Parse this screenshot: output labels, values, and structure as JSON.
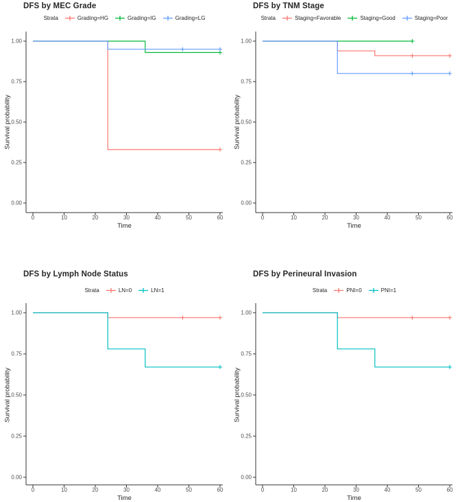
{
  "figure": {
    "background": "#ffffff",
    "axis_color": "#333333",
    "text_color": "#262626",
    "tick_label_color": "#4d4d4d"
  },
  "chart_data": [
    {
      "type": "line",
      "subtype": "kaplan-meier-step",
      "title": "DFS by MEC Grade",
      "xlabel": "Time",
      "ylabel": "Survival probability",
      "legend_title": "Strata",
      "legend_position": "top",
      "xlim": [
        0,
        60
      ],
      "ylim": [
        0,
        1
      ],
      "x_ticks": [
        0,
        10,
        20,
        30,
        40,
        50,
        60
      ],
      "y_ticks": [
        0.0,
        0.25,
        0.5,
        0.75,
        1.0
      ],
      "grid": false,
      "series": [
        {
          "name": "Grading=HG",
          "color": "#F8766D",
          "steps": [
            [
              0,
              1.0
            ],
            [
              24,
              1.0
            ],
            [
              24,
              0.33
            ],
            [
              60,
              0.33
            ]
          ],
          "censor_marks": [
            [
              60,
              0.33
            ]
          ]
        },
        {
          "name": "Grading=IG",
          "color": "#00BA38",
          "steps": [
            [
              0,
              1.0
            ],
            [
              36,
              1.0
            ],
            [
              36,
              0.93
            ],
            [
              60,
              0.93
            ]
          ],
          "censor_marks": [
            [
              60,
              0.93
            ]
          ]
        },
        {
          "name": "Grading=LG",
          "color": "#619CFF",
          "steps": [
            [
              0,
              1.0
            ],
            [
              24,
              1.0
            ],
            [
              24,
              0.95
            ],
            [
              60,
              0.95
            ]
          ],
          "censor_marks": [
            [
              48,
              0.95
            ],
            [
              60,
              0.95
            ]
          ]
        }
      ]
    },
    {
      "type": "line",
      "subtype": "kaplan-meier-step",
      "title": "DFS by TNM Stage",
      "xlabel": "Time",
      "ylabel": "Survival probability",
      "legend_title": "Strata",
      "legend_position": "top",
      "xlim": [
        0,
        60
      ],
      "ylim": [
        0,
        1
      ],
      "x_ticks": [
        0,
        10,
        20,
        30,
        40,
        50,
        60
      ],
      "y_ticks": [
        0.0,
        0.25,
        0.5,
        0.75,
        1.0
      ],
      "grid": false,
      "series": [
        {
          "name": "Staging=Favorable",
          "color": "#F8766D",
          "steps": [
            [
              0,
              1.0
            ],
            [
              24,
              1.0
            ],
            [
              24,
              0.94
            ],
            [
              36,
              0.94
            ],
            [
              36,
              0.91
            ],
            [
              60,
              0.91
            ]
          ],
          "censor_marks": [
            [
              48,
              0.91
            ],
            [
              60,
              0.91
            ]
          ]
        },
        {
          "name": "Staging=Good",
          "color": "#00BA38",
          "steps": [
            [
              0,
              1.0
            ],
            [
              48,
              1.0
            ]
          ],
          "censor_marks": [
            [
              48,
              1.0
            ]
          ]
        },
        {
          "name": "Staging=Poor",
          "color": "#619CFF",
          "steps": [
            [
              0,
              1.0
            ],
            [
              24,
              1.0
            ],
            [
              24,
              0.8
            ],
            [
              60,
              0.8
            ]
          ],
          "censor_marks": [
            [
              48,
              0.8
            ],
            [
              60,
              0.8
            ]
          ]
        }
      ]
    },
    {
      "type": "line",
      "subtype": "kaplan-meier-step",
      "title": "DFS by Lymph Node Status",
      "xlabel": "Time",
      "ylabel": "Survival probability",
      "legend_title": "Strata",
      "legend_position": "top",
      "xlim": [
        0,
        60
      ],
      "ylim": [
        0,
        1
      ],
      "x_ticks": [
        0,
        10,
        20,
        30,
        40,
        50,
        60
      ],
      "y_ticks": [
        0.0,
        0.25,
        0.5,
        0.75,
        1.0
      ],
      "grid": false,
      "series": [
        {
          "name": "LN=0",
          "color": "#F8766D",
          "steps": [
            [
              0,
              1.0
            ],
            [
              24,
              1.0
            ],
            [
              24,
              0.97
            ],
            [
              60,
              0.97
            ]
          ],
          "censor_marks": [
            [
              48,
              0.97
            ],
            [
              60,
              0.97
            ]
          ]
        },
        {
          "name": "LN=1",
          "color": "#00BFC4",
          "steps": [
            [
              0,
              1.0
            ],
            [
              24,
              1.0
            ],
            [
              24,
              0.78
            ],
            [
              36,
              0.78
            ],
            [
              36,
              0.67
            ],
            [
              60,
              0.67
            ]
          ],
          "censor_marks": [
            [
              60,
              0.67
            ]
          ]
        }
      ]
    },
    {
      "type": "line",
      "subtype": "kaplan-meier-step",
      "title": "DFS by Perineural Invasion",
      "xlabel": "Time",
      "ylabel": "Survival probability",
      "legend_title": "Strata",
      "legend_position": "top",
      "xlim": [
        0,
        60
      ],
      "ylim": [
        0,
        1
      ],
      "x_ticks": [
        0,
        10,
        20,
        30,
        40,
        50,
        60
      ],
      "y_ticks": [
        0.0,
        0.25,
        0.5,
        0.75,
        1.0
      ],
      "grid": false,
      "series": [
        {
          "name": "PNI=0",
          "color": "#F8766D",
          "steps": [
            [
              0,
              1.0
            ],
            [
              24,
              1.0
            ],
            [
              24,
              0.97
            ],
            [
              60,
              0.97
            ]
          ],
          "censor_marks": [
            [
              48,
              0.97
            ],
            [
              60,
              0.97
            ]
          ]
        },
        {
          "name": "PNI=1",
          "color": "#00BFC4",
          "steps": [
            [
              0,
              1.0
            ],
            [
              24,
              1.0
            ],
            [
              24,
              0.78
            ],
            [
              36,
              0.78
            ],
            [
              36,
              0.67
            ],
            [
              60,
              0.67
            ]
          ],
          "censor_marks": [
            [
              60,
              0.67
            ]
          ]
        }
      ]
    }
  ]
}
